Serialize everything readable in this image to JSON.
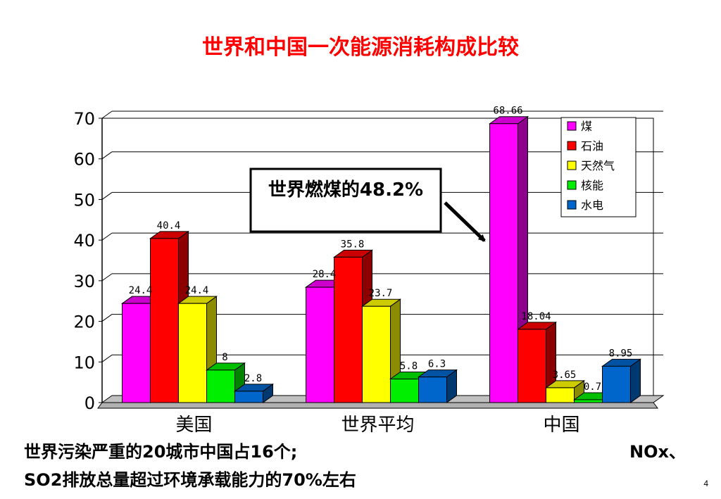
{
  "title": "世界和中国一次能源消耗构成比较",
  "callout": {
    "text": "世界燃煤的48.2%"
  },
  "footer": {
    "line1_left": "世界污染严重的20城市中国占16个;",
    "line1_right": "NOx、",
    "line2": "SO2排放总量超过环境承载能力的70%左右"
  },
  "page_number": "4",
  "chart_data": {
    "type": "bar",
    "style": "3d-clustered",
    "categories": [
      "美国",
      "世界平均",
      "中国"
    ],
    "series": [
      {
        "name": "煤",
        "color": "#ff00ff",
        "values": [
          24.4,
          28.4,
          68.66
        ],
        "labels": [
          "24.4",
          "28.4",
          "68.66"
        ]
      },
      {
        "name": "石油",
        "color": "#ff0000",
        "values": [
          40.4,
          35.8,
          18.04
        ],
        "labels": [
          "40.4",
          "35.8",
          "18.04"
        ]
      },
      {
        "name": "天然气",
        "color": "#ffff00",
        "values": [
          24.4,
          23.7,
          3.65
        ],
        "labels": [
          "24.4",
          "23.7",
          "3.65"
        ]
      },
      {
        "name": "核能",
        "color": "#00ee00",
        "values": [
          8,
          5.8,
          0.7
        ],
        "labels": [
          "8",
          "5.8",
          "0.7"
        ]
      },
      {
        "name": "水电",
        "color": "#0066cc",
        "values": [
          2.8,
          6.3,
          8.95
        ],
        "labels": [
          "2.8",
          "6.3",
          "8.95"
        ]
      }
    ],
    "yticks": [
      "0",
      "10",
      "20",
      "30",
      "40",
      "50",
      "60",
      "70"
    ],
    "ylim": [
      0,
      70
    ],
    "grid": true,
    "legend": "top-right"
  }
}
